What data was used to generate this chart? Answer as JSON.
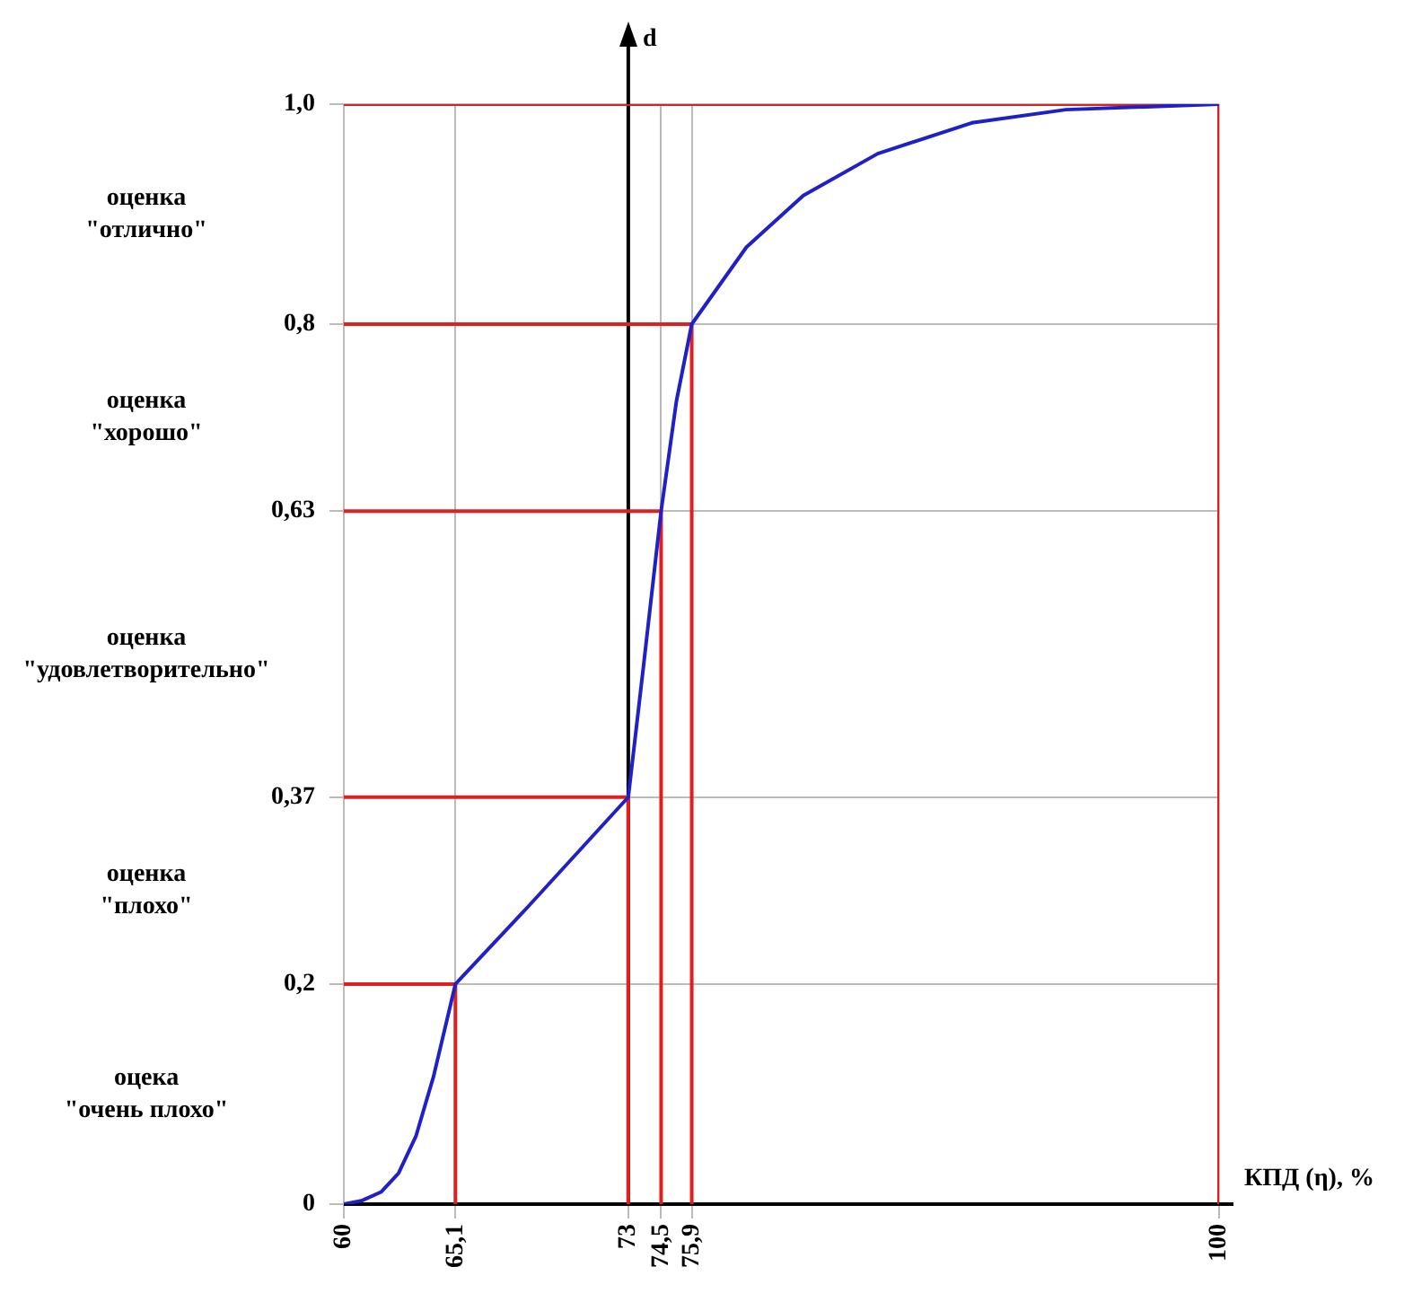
{
  "chart_data": {
    "type": "line",
    "xlabel": "КПД (η), %",
    "ylabel": "d",
    "xlim": [
      60,
      100
    ],
    "ylim": [
      0,
      1
    ],
    "xticks": [
      60,
      {
        "value": 65.1,
        "label": "65,1"
      },
      73,
      {
        "value": 74.5,
        "label": "74,5"
      },
      {
        "value": 75.9,
        "label": "75,9"
      },
      100
    ],
    "yticks": [
      0,
      {
        "value": 0.2,
        "label": "0,2"
      },
      {
        "value": 0.37,
        "label": "0,37"
      },
      {
        "value": 0.63,
        "label": "0,63"
      },
      {
        "value": 0.8,
        "label": "0,8"
      },
      {
        "value": 1,
        "label": "1,0"
      }
    ],
    "grid": true,
    "legend": false,
    "marker": "none",
    "series": [
      {
        "color": "#2020c8",
        "x": [
          60,
          60.8,
          61.7,
          62.5,
          63.3,
          64.1,
          65.1,
          68.4,
          73,
          73.7,
          74.5,
          75.2,
          75.9,
          78.4,
          81.0,
          84.4,
          88.7,
          93.0,
          100
        ],
        "values": [
          0,
          0.003,
          0.011,
          0.028,
          0.062,
          0.116,
          0.2,
          0.27,
          0.37,
          0.49,
          0.63,
          0.73,
          0.8,
          0.87,
          0.917,
          0.955,
          0.983,
          0.995,
          1
        ]
      },
      {
        "color": "#e02020",
        "x": [
          60,
          65.1,
          65.1
        ],
        "values": [
          0.2,
          0.2,
          0
        ]
      },
      {
        "color": "#e02020",
        "x": [
          60,
          73,
          73
        ],
        "values": [
          0.37,
          0.37,
          0
        ]
      },
      {
        "color": "#e02020",
        "x": [
          60,
          74.5,
          74.5
        ],
        "values": [
          0.63,
          0.63,
          0
        ]
      },
      {
        "color": "#e02020",
        "x": [
          60,
          75.9,
          75.9
        ],
        "values": [
          0.8,
          0.8,
          0
        ]
      },
      {
        "color": "#e02020",
        "x": [
          60,
          100,
          100
        ],
        "values": [
          1,
          1,
          0
        ]
      }
    ],
    "ref_lines": [
      {
        "axis": "x",
        "value": 73,
        "color": "#000000"
      }
    ],
    "annotations": [
      "оценка \"отлично\"",
      "оценка \"хорошо\"",
      "оценка \"удовлетворительно\"",
      "оценка \"плохо\"",
      "оцека \"очень плохо\""
    ]
  }
}
